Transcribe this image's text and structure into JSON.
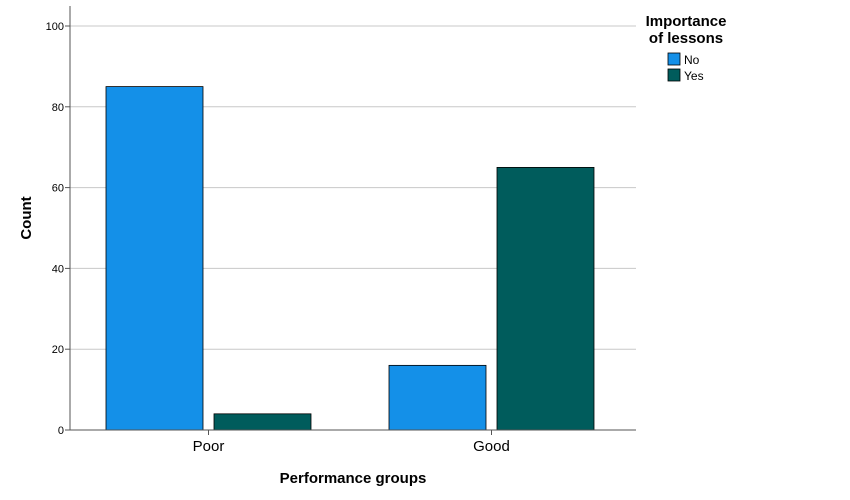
{
  "chart_data": {
    "type": "bar",
    "categories": [
      "Poor",
      "Good"
    ],
    "series": [
      {
        "name": "No",
        "values": [
          85,
          16
        ],
        "color": "#1490e8"
      },
      {
        "name": "Yes",
        "values": [
          4,
          65
        ],
        "color": "#005c5c"
      }
    ],
    "xlabel": "Performance groups",
    "ylabel": "Count",
    "ylim": [
      0,
      100
    ],
    "yticks": [
      0,
      20,
      40,
      60,
      80,
      100
    ],
    "grid": true,
    "legend": {
      "title_line1": "Importance",
      "title_line2": "of lessons",
      "placement": "top-right"
    }
  }
}
